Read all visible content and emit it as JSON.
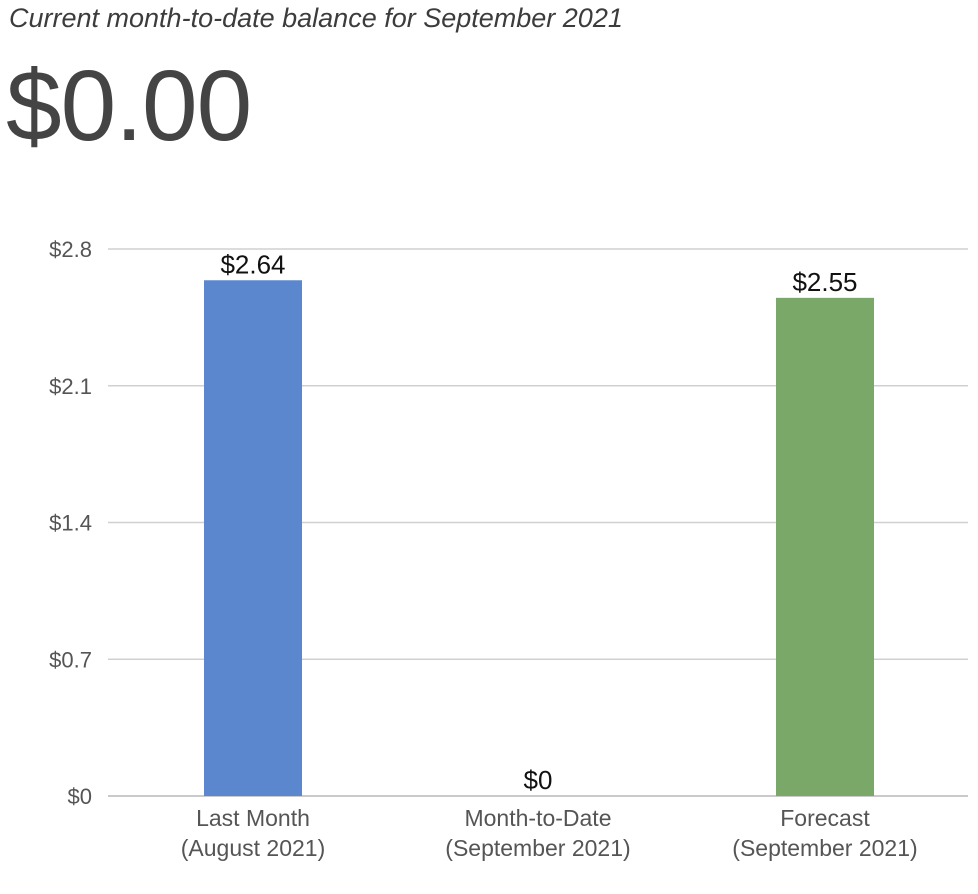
{
  "header": {
    "subtitle": "Current month-to-date balance for September 2021",
    "balance": "$0.00"
  },
  "chart_data": {
    "type": "bar",
    "categories": [
      [
        "Last Month",
        "(August 2021)"
      ],
      [
        "Month-to-Date",
        "(September 2021)"
      ],
      [
        "Forecast",
        "(September 2021)"
      ]
    ],
    "values": [
      2.64,
      0,
      2.55
    ],
    "value_labels": [
      "$2.64",
      "$0",
      "$2.55"
    ],
    "bar_colors": [
      "#5b87cf",
      "#5b87cf",
      "#79a869"
    ],
    "y_ticks": [
      0,
      0.7,
      1.4,
      2.1,
      2.8
    ],
    "y_tick_labels": [
      "$0",
      "$0.7",
      "$1.4",
      "$2.1",
      "$2.8"
    ],
    "ylim": [
      0,
      2.8
    ],
    "grid": true,
    "xlabel": "",
    "ylabel": ""
  }
}
